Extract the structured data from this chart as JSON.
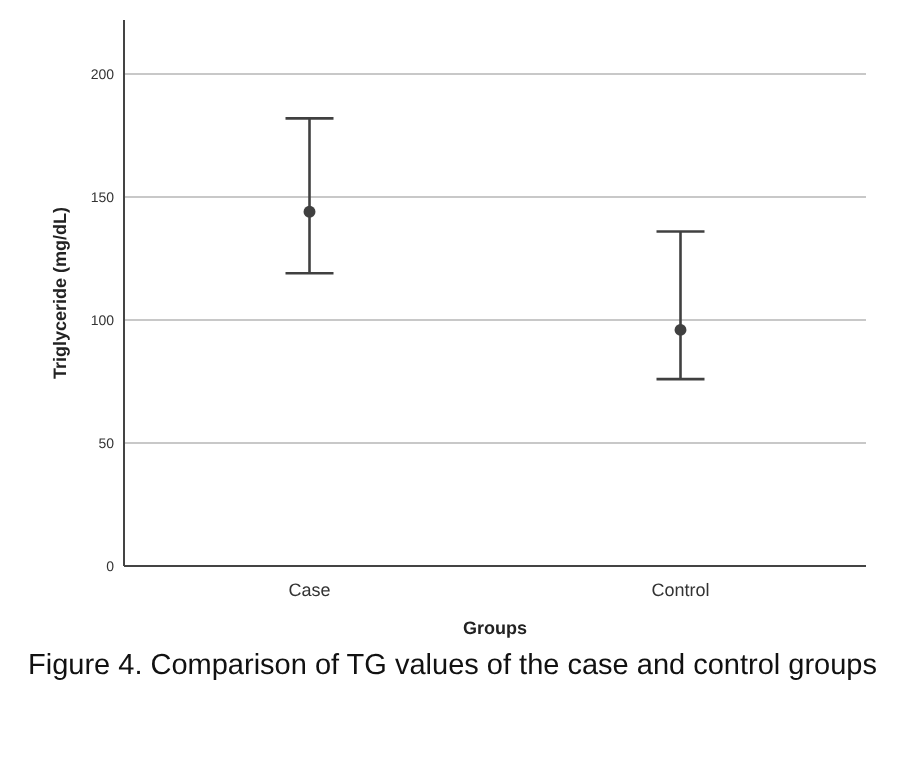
{
  "chart_data": {
    "type": "scatter",
    "xlabel": "Groups",
    "ylabel": "Triglyceride (mg/dL)",
    "categories": [
      "Case",
      "Control"
    ],
    "series": [
      {
        "color": "#404040",
        "values": [
          144,
          96
        ],
        "errors": [
          [
            119,
            182
          ],
          [
            76,
            136
          ]
        ]
      }
    ],
    "ylim": [
      0,
      222
    ],
    "yticks": [
      0,
      50,
      100,
      150,
      200
    ],
    "grid": "y",
    "marker": "circle",
    "annotations": [
      "Figure 4. Comparison of TG values of the case and control groups"
    ]
  }
}
